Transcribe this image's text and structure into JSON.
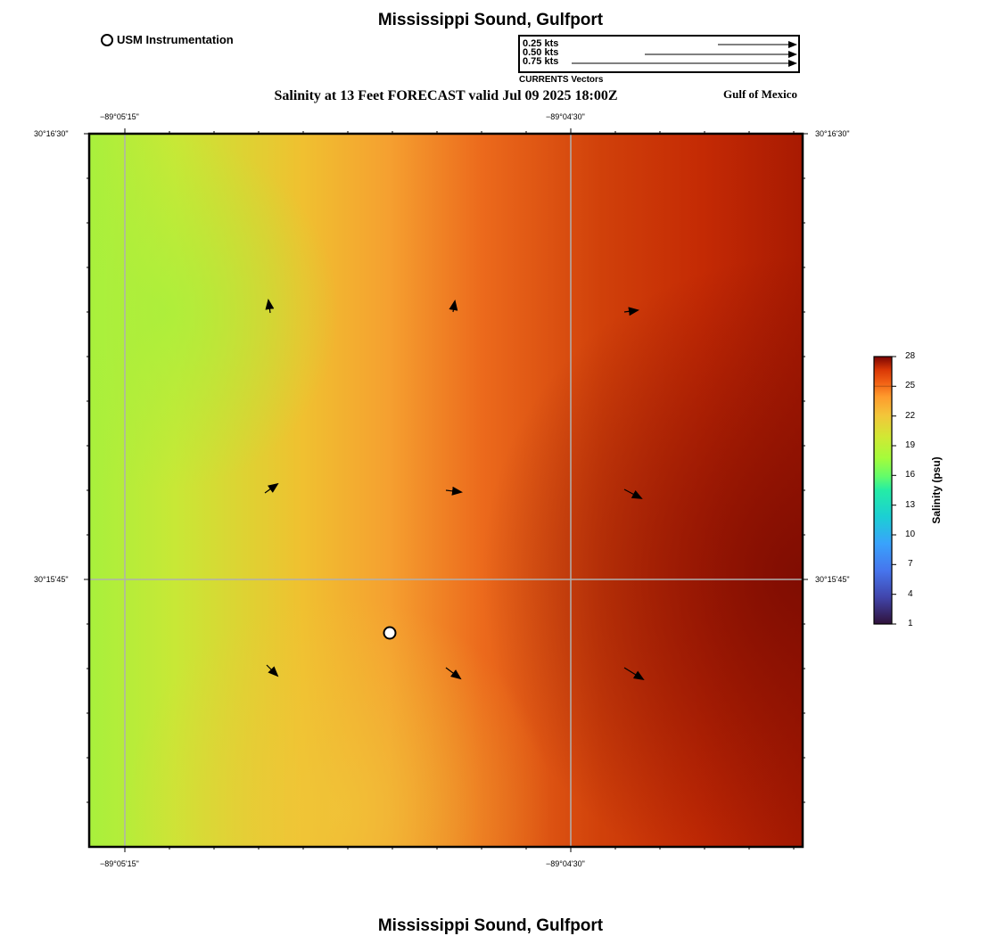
{
  "map": {
    "title_top": "Mississippi Sound, Gulfport",
    "title_bottom": "Mississippi Sound, Gulfport",
    "subtitle": "Salinity at 13 Feet FORECAST valid Jul 09 2025 18:00Z",
    "region_label": "Gulf of Mexico",
    "station_legend": "USM Instrumentation",
    "vector_legend": {
      "title": "CURRENTS Vectors",
      "entries": [
        "0.25 kts",
        "0.50 kts",
        "0.75 kts"
      ]
    },
    "lon_ticks": [
      "−89°05'15\"",
      "−89°04'30\""
    ],
    "lat_ticks": [
      "30°16'30\"",
      "30°15'45\""
    ],
    "colorbar": {
      "label": "Salinity (psu)",
      "ticks": [
        "28",
        "25",
        "22",
        "19",
        "16",
        "13",
        "10",
        "7",
        "4",
        "1"
      ],
      "min": 1,
      "max": 28
    },
    "colors": {
      "low": "#a8f03c",
      "mid": "#f5a030",
      "high": "#c42a04",
      "max": "#7e0c02"
    }
  }
}
